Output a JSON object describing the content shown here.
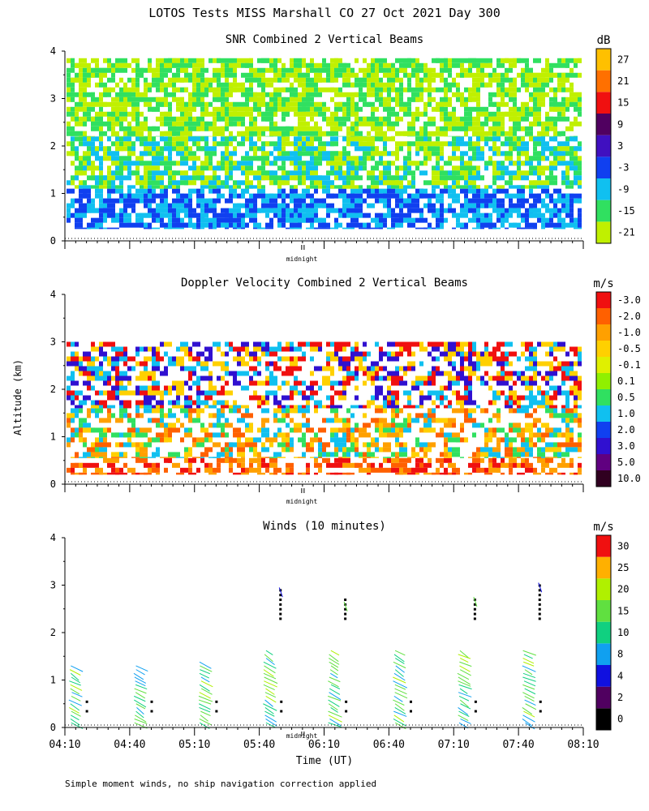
{
  "figure": {
    "title": "LOTOS Tests MISS Marshall CO  27 Oct 2021 Day 300",
    "ylabel": "Altitude (km)",
    "xlabel": "Time (UT)",
    "footnote": "Simple moment winds, no ship navigation correction applied",
    "midnight_label": "midnight",
    "x_ticks": [
      "04:10",
      "04:40",
      "05:10",
      "05:40",
      "06:10",
      "06:40",
      "07:10",
      "07:40",
      "08:10"
    ]
  },
  "chart_data": [
    {
      "type": "heatmap",
      "title": "SNR Combined 2 Vertical Beams",
      "unit": "dB",
      "ylim": [
        0,
        4
      ],
      "y_ticks": [
        "0",
        "1",
        "2",
        "3",
        "4"
      ],
      "colorbar_labels": [
        "-21",
        "-15",
        "-9",
        "-3",
        "3",
        "9",
        "15",
        "21",
        "27"
      ],
      "colorbar_colors": [
        "#c0f000",
        "#30e060",
        "#10c0f0",
        "#1040f0",
        "#4010c0",
        "#500060",
        "#f01010",
        "#ff7000",
        "#ffc000"
      ],
      "layers": [
        {
          "from_km": 0.25,
          "to_km": 1.1,
          "levels": [
            -3,
            -9
          ]
        },
        {
          "from_km": 1.1,
          "to_km": 2.2,
          "levels": [
            -15,
            -21,
            -9
          ]
        },
        {
          "from_km": 2.2,
          "to_km": 3.85,
          "levels": [
            -21,
            -15
          ]
        }
      ]
    },
    {
      "type": "heatmap",
      "title": "Doppler Velocity Combined 2 Vertical Beams",
      "unit": "m/s",
      "ylim": [
        0,
        4
      ],
      "y_ticks": [
        "0",
        "1",
        "2",
        "3",
        "4"
      ],
      "colorbar_labels": [
        "10.0",
        "5.0",
        "3.0",
        "2.0",
        "1.0",
        "0.5",
        "0.1",
        "-0.1",
        "-0.5",
        "-1.0",
        "-2.0",
        "-3.0"
      ],
      "colorbar_colors": [
        "#300020",
        "#600080",
        "#3010d0",
        "#1040f0",
        "#10c0f0",
        "#30e060",
        "#90f000",
        "#e0f000",
        "#ffd000",
        "#ffa000",
        "#ff6000",
        "#f01010"
      ],
      "layers": [
        {
          "from_km": 0.2,
          "to_km": 0.55,
          "levels": [
            -1.0,
            -2.0,
            -3.0
          ]
        },
        {
          "from_km": 0.55,
          "to_km": 1.6,
          "levels": [
            -0.5,
            -1.0,
            -2.0,
            0.5,
            1.0
          ]
        },
        {
          "from_km": 1.6,
          "to_km": 3.0,
          "levels": [
            -0.5,
            1.0,
            3.0,
            -3.0
          ]
        }
      ]
    },
    {
      "type": "scatter",
      "title": "Winds (10 minutes)",
      "unit": "m/s",
      "ylim": [
        0,
        4
      ],
      "y_ticks": [
        "0",
        "1",
        "2",
        "3",
        "4"
      ],
      "colorbar_labels": [
        "0",
        "2",
        "4",
        "8",
        "10",
        "15",
        "20",
        "25",
        "30"
      ],
      "colorbar_colors": [
        "#000000",
        "#500060",
        "#1010e0",
        "#10a0f0",
        "#10d080",
        "#60e040",
        "#b0f000",
        "#ffb000",
        "#f01010"
      ],
      "profile_times": [
        "04:20",
        "04:50",
        "05:20",
        "05:50",
        "06:20",
        "06:50",
        "07:20",
        "07:50"
      ],
      "profile_top_km": [
        1.3,
        1.3,
        1.45,
        3.0,
        2.7,
        1.8,
        2.8,
        3.1
      ]
    }
  ]
}
